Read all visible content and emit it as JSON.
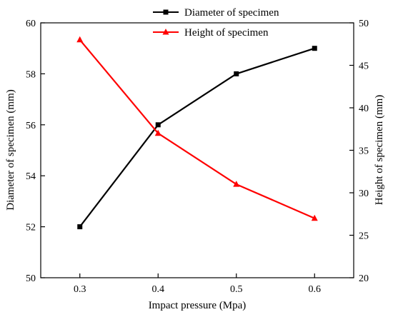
{
  "chart_data": {
    "type": "line",
    "title": "",
    "xlabel": "Impact pressure (Mpa)",
    "x": [
      0.3,
      0.4,
      0.5,
      0.6
    ],
    "x_ticks": [
      "0.3",
      "0.4",
      "0.5",
      "0.6"
    ],
    "xlim": [
      0.25,
      0.65
    ],
    "y_left": {
      "label": "Diameter of specimen (mm)",
      "lim": [
        50,
        60
      ],
      "ticks": [
        "50",
        "52",
        "54",
        "56",
        "58",
        "60"
      ]
    },
    "y_right": {
      "label": "Height of specimen (mm)",
      "lim": [
        20,
        50
      ],
      "ticks": [
        "20",
        "25",
        "30",
        "35",
        "40",
        "45",
        "50"
      ]
    },
    "series": [
      {
        "name": "Diameter of specimen",
        "axis": "left",
        "color": "#000000",
        "marker": "square",
        "values": [
          52,
          56,
          58,
          59
        ]
      },
      {
        "name": "Height of specimen",
        "axis": "right",
        "color": "#ff0000",
        "marker": "triangle",
        "values": [
          48,
          37,
          31,
          27
        ]
      }
    ],
    "legend": "top-center",
    "grid": false
  }
}
